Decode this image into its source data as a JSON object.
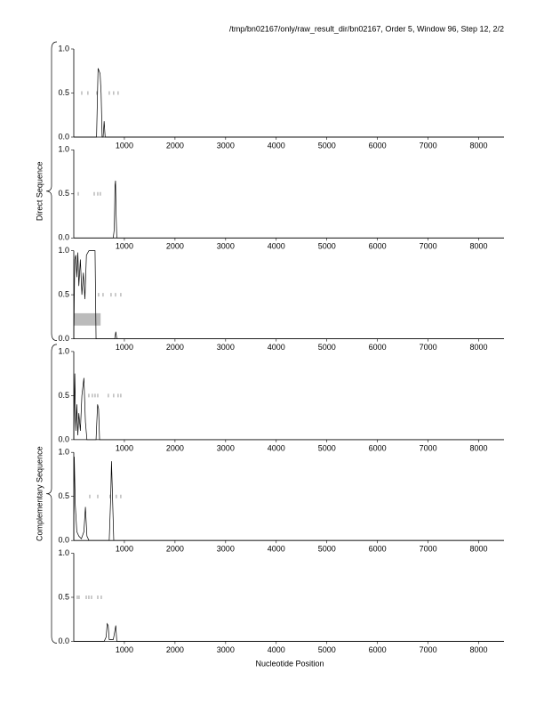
{
  "title": "/tmp/bn02167/only/raw_result_dir/bn02167, Order 5, Window 96, Step 12, 2/2",
  "x_label": "Nucleotide Position",
  "groups": [
    "Direct Sequence",
    "Complementary Sequence"
  ],
  "chart_data": [
    {
      "type": "line",
      "xlim": [
        0,
        8500
      ],
      "ylim": [
        0,
        1
      ],
      "xticks": [
        1000,
        2000,
        3000,
        4000,
        5000,
        6000,
        7000,
        8000
      ],
      "yticks": [
        {
          "value": 0,
          "label": "0.0"
        },
        {
          "value": 0.5,
          "label": "0.5"
        },
        {
          "value": 1,
          "label": "1.0"
        }
      ],
      "x": [
        0,
        450,
        480,
        500,
        520,
        540,
        560,
        580,
        600,
        620,
        640,
        700,
        8500
      ],
      "values": [
        0,
        0,
        0.78,
        0.75,
        0.72,
        0.5,
        0,
        0,
        0.18,
        0,
        0,
        0,
        0
      ],
      "codon_marks": {
        "y": 0.5,
        "x": [
          158,
          280,
          456,
          702,
          789,
          877
        ]
      }
    },
    {
      "type": "line",
      "xlim": [
        0,
        8500
      ],
      "ylim": [
        0,
        1
      ],
      "xticks": [
        1000,
        2000,
        3000,
        4000,
        5000,
        6000,
        7000,
        8000
      ],
      "yticks": [
        {
          "value": 0,
          "label": "0.0"
        },
        {
          "value": 0.5,
          "label": "0.5"
        },
        {
          "value": 1,
          "label": "1.0"
        }
      ],
      "x": [
        0,
        780,
        800,
        815,
        825,
        835,
        850,
        8500
      ],
      "values": [
        0,
        0,
        0.1,
        0.6,
        0.65,
        0.3,
        0,
        0
      ],
      "codon_marks": {
        "y": 0.5,
        "x": [
          88,
          404,
          474,
          526
        ]
      }
    },
    {
      "type": "line",
      "xlim": [
        0,
        8500
      ],
      "ylim": [
        0,
        1
      ],
      "xticks": [
        1000,
        2000,
        3000,
        4000,
        5000,
        6000,
        7000,
        8000
      ],
      "yticks": [
        {
          "value": 0,
          "label": "0.0"
        },
        {
          "value": 0.5,
          "label": "0.5"
        },
        {
          "value": 1,
          "label": "1.0"
        }
      ],
      "x": [
        0,
        20,
        40,
        60,
        80,
        100,
        130,
        160,
        190,
        220,
        250,
        280,
        300,
        420,
        440,
        460,
        810,
        830,
        850,
        8500
      ],
      "values": [
        0,
        0.9,
        0.95,
        0.7,
        0.98,
        0.6,
        0.9,
        0.5,
        0.75,
        0.45,
        0.95,
        0.98,
        1,
        1,
        0,
        0,
        0,
        0.08,
        0,
        0
      ],
      "regions": [
        {
          "x": [
            0,
            530
          ],
          "y": [
            0.15,
            0.29
          ]
        }
      ],
      "codon_marks": {
        "y": 0.5,
        "x": [
          491,
          579,
          737,
          825,
          930
        ]
      }
    },
    {
      "type": "line",
      "xlim": [
        0,
        8500
      ],
      "ylim": [
        0,
        1
      ],
      "xticks": [
        1000,
        2000,
        3000,
        4000,
        5000,
        6000,
        7000,
        8000
      ],
      "yticks": [
        {
          "value": 0,
          "label": "0.0"
        },
        {
          "value": 0.5,
          "label": "0.5"
        },
        {
          "value": 1,
          "label": "1.0"
        }
      ],
      "x": [
        0,
        20,
        40,
        60,
        80,
        100,
        130,
        160,
        200,
        230,
        260,
        300,
        440,
        470,
        490,
        510,
        8500
      ],
      "values": [
        0,
        0.75,
        0.1,
        0.4,
        0.05,
        0.3,
        0.1,
        0.5,
        0.7,
        0.2,
        0,
        0,
        0,
        0.4,
        0.35,
        0,
        0
      ],
      "codon_marks": {
        "y": 0.5,
        "x": [
          298,
          368,
          421,
          474,
          684,
          789,
          877,
          930
        ]
      }
    },
    {
      "type": "line",
      "xlim": [
        0,
        8500
      ],
      "ylim": [
        0,
        1
      ],
      "xticks": [
        1000,
        2000,
        3000,
        4000,
        5000,
        6000,
        7000,
        8000
      ],
      "yticks": [
        {
          "value": 0,
          "label": "0.0"
        },
        {
          "value": 0.5,
          "label": "0.5"
        },
        {
          "value": 1,
          "label": "1.0"
        }
      ],
      "x": [
        0,
        10,
        30,
        60,
        100,
        150,
        200,
        230,
        260,
        300,
        700,
        730,
        745,
        760,
        790,
        8500
      ],
      "values": [
        0,
        0.95,
        0.4,
        0.1,
        0.05,
        0.02,
        0.1,
        0.38,
        0.05,
        0,
        0,
        0.5,
        0.9,
        0.6,
        0,
        0
      ],
      "codon_marks": {
        "y": 0.5,
        "x": [
          316,
          474,
          719,
          842,
          930
        ]
      }
    },
    {
      "type": "line",
      "xlim": [
        0,
        8500
      ],
      "ylim": [
        0,
        1
      ],
      "xticks": [
        1000,
        2000,
        3000,
        4000,
        5000,
        6000,
        7000,
        8000
      ],
      "yticks": [
        {
          "value": 0,
          "label": "0.0"
        },
        {
          "value": 0.5,
          "label": "0.5"
        },
        {
          "value": 1,
          "label": "1.0"
        }
      ],
      "x": [
        0,
        600,
        640,
        660,
        680,
        700,
        780,
        800,
        830,
        850,
        8500
      ],
      "values": [
        0,
        0,
        0.05,
        0.2,
        0.18,
        0.02,
        0.02,
        0.08,
        0.18,
        0,
        0
      ],
      "codon_marks": {
        "y": 0.5,
        "x": [
          70,
          105,
          246,
          298,
          351,
          474,
          544
        ]
      }
    }
  ]
}
